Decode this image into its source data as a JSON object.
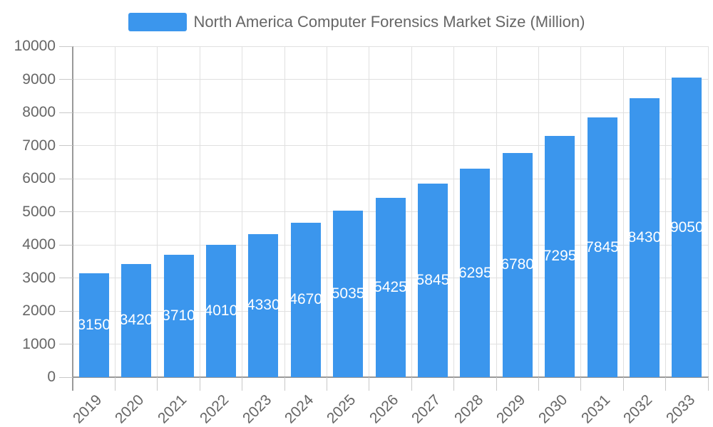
{
  "chart_data": {
    "type": "bar",
    "title": "North America Computer Forensics Market Size (Million)",
    "categories": [
      "2019",
      "2020",
      "2021",
      "2022",
      "2023",
      "2024",
      "2025",
      "2026",
      "2027",
      "2028",
      "2029",
      "2030",
      "2031",
      "2032",
      "2033"
    ],
    "values": [
      3150,
      3420,
      3710,
      4010,
      4330,
      4670,
      5035,
      5425,
      5845,
      6295,
      6780,
      7295,
      7845,
      8430,
      9050
    ],
    "xlabel": "",
    "ylabel": "",
    "ylim": [
      0,
      10000
    ],
    "y_tick_interval": 1000,
    "y_tick_labels": [
      "0",
      "1000",
      "2000",
      "3000",
      "4000",
      "5000",
      "6000",
      "7000",
      "8000",
      "9000",
      "10000"
    ],
    "grid": true,
    "bar_labels_shown_inside_bars": true,
    "legend_position": "top",
    "colors": {
      "bar": "#3B96ED",
      "grid_line": "#E0E0E0",
      "axis_line": "#999999",
      "tick_line": "#C8C8C8",
      "axis_text": "#666666",
      "legend_text": "#666666",
      "bar_label_text": "#FFFFFF",
      "background": "#FFFFFF"
    }
  }
}
